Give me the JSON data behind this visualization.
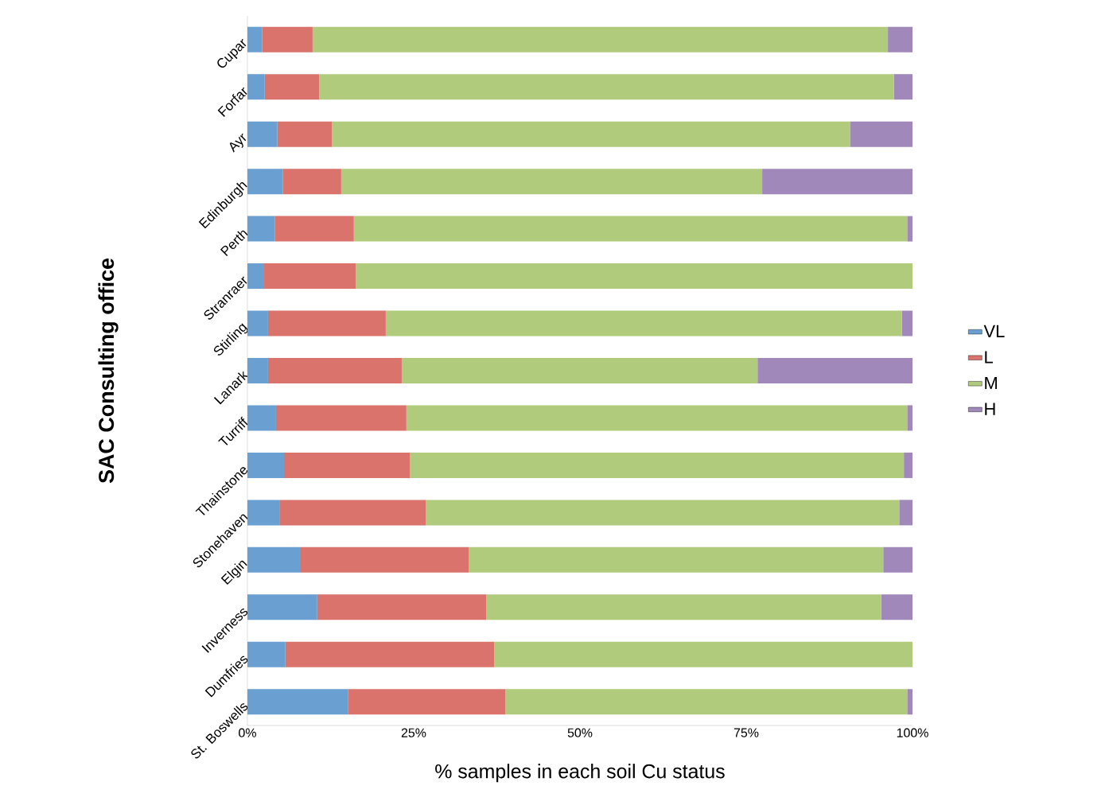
{
  "chart_data": {
    "type": "bar",
    "orientation": "horizontal",
    "stacked": true,
    "xlabel": "% samples  in each soil Cu status",
    "ylabel": "SAC Consulting office",
    "categories": [
      "Cupar",
      "Forfar",
      "Ayr",
      "Edinburgh",
      "Perth",
      "Stranraer",
      "Stirling",
      "Lanark",
      "Turriff",
      "Thainstone",
      "Stonehaven",
      "Elgin",
      "Inverness",
      "Dumfries",
      "St. Boswells"
    ],
    "series": [
      {
        "name": "VL",
        "color": "#6a9fd2",
        "values": [
          2.2,
          2.6,
          4.5,
          5.3,
          4.1,
          2.4,
          3.1,
          3.1,
          4.3,
          5.5,
          4.8,
          7.9,
          10.5,
          5.7,
          15.1
        ]
      },
      {
        "name": "L",
        "color": "#d9736b",
        "values": [
          7.6,
          8.2,
          8.2,
          8.8,
          11.9,
          13.9,
          17.7,
          20.1,
          19.6,
          18.9,
          22.0,
          25.4,
          25.4,
          31.4,
          23.7
        ]
      },
      {
        "name": "M",
        "color": "#b0cb7c",
        "values": [
          86.5,
          86.4,
          77.9,
          63.3,
          83.2,
          83.7,
          77.6,
          53.5,
          75.3,
          74.3,
          71.2,
          62.3,
          59.4,
          62.9,
          60.4
        ]
      },
      {
        "name": "H",
        "color": "#a088bb",
        "values": [
          3.7,
          2.8,
          9.4,
          22.6,
          0.8,
          0.0,
          1.6,
          23.3,
          0.8,
          1.3,
          2.0,
          4.4,
          4.7,
          0.0,
          0.8
        ]
      }
    ],
    "xlim": [
      0,
      100
    ],
    "xticks": [
      {
        "value": 0,
        "label": "0%"
      },
      {
        "value": 25,
        "label": "25%"
      },
      {
        "value": 50,
        "label": "50%"
      },
      {
        "value": 75,
        "label": "75%"
      },
      {
        "value": 100,
        "label": "100%"
      }
    ],
    "grid": false,
    "legend": "right"
  }
}
